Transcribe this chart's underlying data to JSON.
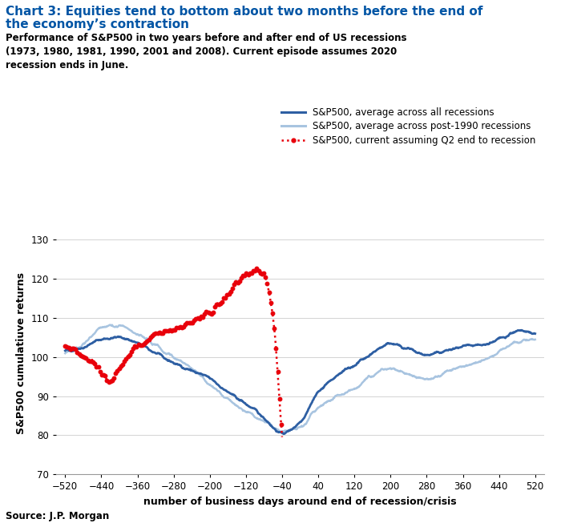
{
  "title_line1": "Chart 3: Equities tend to bottom about two months before the end of",
  "title_line2": "the economy’s contraction",
  "subtitle": "Performance of S&P500 in two years before and after end of US recessions\n(1973, 1980, 1981, 1990, 2001 and 2008). Current episode assumes 2020\nrecession ends in June.",
  "source": "Source: J.P. Morgan",
  "xlabel": "number of business days around end of recession/crisis",
  "ylabel": "S&P500 cumulatiuve returns",
  "xlim": [
    -540,
    540
  ],
  "ylim": [
    70,
    132
  ],
  "xticks": [
    -520,
    -440,
    -360,
    -280,
    -200,
    -120,
    -40,
    40,
    120,
    200,
    280,
    360,
    440,
    520
  ],
  "yticks": [
    70,
    80,
    90,
    100,
    110,
    120,
    130
  ],
  "color_all": "#2E5FA3",
  "color_post1990": "#A8C4E0",
  "color_current": "#E8000B",
  "title_color": "#0055A5",
  "legend_labels": [
    "S&P500, average across all recessions",
    "S&P500, average across post-1990 recessions",
    "S&P500, current assuming Q2 end to recession"
  ],
  "kp_all_x": [
    -520,
    -480,
    -440,
    -400,
    -360,
    -320,
    -280,
    -240,
    -200,
    -160,
    -120,
    -80,
    -40,
    0,
    40,
    80,
    120,
    160,
    200,
    240,
    280,
    320,
    360,
    400,
    440,
    480,
    520
  ],
  "kp_all_y": [
    101.5,
    102.5,
    104.5,
    105.0,
    103.5,
    101.0,
    98.5,
    96.5,
    94.5,
    91.0,
    88.0,
    84.5,
    80.5,
    83.5,
    91.0,
    95.0,
    98.0,
    101.0,
    103.5,
    102.0,
    100.5,
    101.5,
    102.5,
    103.0,
    104.5,
    106.5,
    106.0
  ],
  "kp_post_x": [
    -520,
    -480,
    -440,
    -400,
    -360,
    -320,
    -280,
    -240,
    -200,
    -160,
    -120,
    -80,
    -40,
    0,
    40,
    80,
    120,
    160,
    200,
    240,
    280,
    320,
    360,
    400,
    440,
    480,
    520
  ],
  "kp_post_y": [
    101.0,
    103.0,
    107.5,
    108.0,
    106.0,
    103.0,
    100.0,
    97.0,
    93.0,
    89.0,
    86.0,
    83.5,
    81.0,
    82.0,
    87.0,
    90.0,
    92.0,
    95.5,
    97.0,
    95.5,
    94.5,
    96.0,
    97.5,
    99.0,
    101.5,
    104.0,
    104.5
  ],
  "kp_current_x": [
    -520,
    -500,
    -480,
    -460,
    -440,
    -420,
    -400,
    -380,
    -360,
    -340,
    -320,
    -300,
    -280,
    -260,
    -240,
    -220,
    -200,
    -180,
    -160,
    -140,
    -120,
    -100,
    -80,
    -60,
    -40
  ],
  "kp_current_y": [
    103,
    102,
    100.5,
    99,
    96,
    94,
    97,
    100,
    103,
    104,
    106,
    106.5,
    107,
    108,
    109,
    110,
    111,
    113,
    116,
    119,
    121,
    122,
    121,
    110,
    80
  ]
}
